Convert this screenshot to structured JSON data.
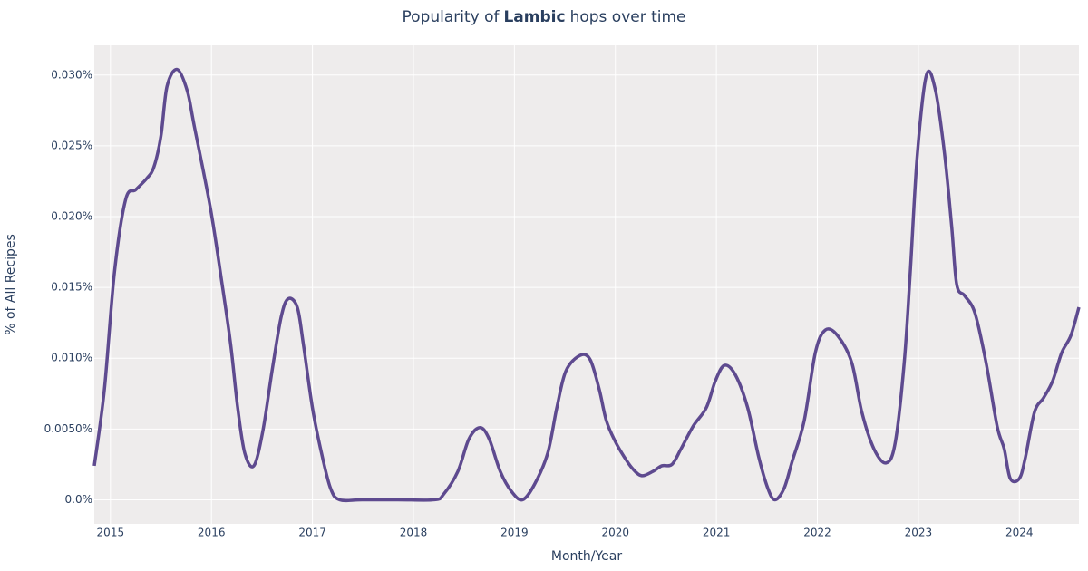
{
  "chart_data": {
    "type": "line",
    "title": {
      "prefix": "Popularity of",
      "emphasis": "Lambic",
      "suffix": "hops over time"
    },
    "x_label": "Month/Year",
    "y_label": "% of All Recipes",
    "xlim": [
      2014.84,
      2024.59
    ],
    "xticks": [
      2015,
      2016,
      2017,
      2018,
      2019,
      2020,
      2021,
      2022,
      2023,
      2024
    ],
    "ylim": [
      -0.0017,
      0.0321
    ],
    "yticks": [
      {
        "value": 0,
        "label": "0.0%"
      },
      {
        "value": 0.005,
        "label": "0.0050%"
      },
      {
        "value": 0.01,
        "label": "0.010%"
      },
      {
        "value": 0.015,
        "label": "0.015%"
      },
      {
        "value": 0.02,
        "label": "0.020%"
      },
      {
        "value": 0.025,
        "label": "0.025%"
      },
      {
        "value": 0.03,
        "label": "0.030%"
      }
    ],
    "grid": true,
    "series": [
      {
        "name": "Lambic",
        "color": "#5e4a8f",
        "x": [
          2014.84,
          2014.94,
          2015.04,
          2015.15,
          2015.25,
          2015.36,
          2015.43,
          2015.5,
          2015.56,
          2015.66,
          2015.76,
          2015.83,
          2015.99,
          2016.1,
          2016.19,
          2016.26,
          2016.33,
          2016.42,
          2016.51,
          2016.6,
          2016.69,
          2016.76,
          2016.85,
          2016.91,
          2017.0,
          2017.09,
          2017.18,
          2017.27,
          2017.49,
          2017.85,
          2018.21,
          2018.3,
          2018.44,
          2018.55,
          2018.66,
          2018.75,
          2018.86,
          2018.97,
          2019.08,
          2019.2,
          2019.33,
          2019.42,
          2019.51,
          2019.65,
          2019.75,
          2019.84,
          2019.91,
          2020.0,
          2020.09,
          2020.17,
          2020.26,
          2020.37,
          2020.46,
          2020.56,
          2020.65,
          2020.77,
          2020.9,
          2020.99,
          2021.08,
          2021.19,
          2021.31,
          2021.42,
          2021.51,
          2021.58,
          2021.67,
          2021.75,
          2021.87,
          2021.98,
          2022.08,
          2022.2,
          2022.34,
          2022.44,
          2022.56,
          2022.68,
          2022.77,
          2022.86,
          2022.92,
          2022.99,
          2023.08,
          2023.17,
          2023.26,
          2023.33,
          2023.38,
          2023.46,
          2023.56,
          2023.67,
          2023.78,
          2023.85,
          2023.91,
          2024.0,
          2024.06,
          2024.15,
          2024.24,
          2024.33,
          2024.42,
          2024.51,
          2024.59
        ],
        "values": [
          0.0024,
          0.0078,
          0.0161,
          0.0212,
          0.0219,
          0.0227,
          0.0235,
          0.0257,
          0.0292,
          0.0304,
          0.0289,
          0.0264,
          0.0206,
          0.0155,
          0.011,
          0.0065,
          0.0033,
          0.0024,
          0.0049,
          0.0091,
          0.0129,
          0.0142,
          0.0136,
          0.011,
          0.0065,
          0.0033,
          0.0008,
          0,
          0,
          0,
          0,
          0.0004,
          0.002,
          0.0043,
          0.0051,
          0.0043,
          0.002,
          0.0006,
          0,
          0.0011,
          0.0033,
          0.0065,
          0.0091,
          0.0102,
          0.0099,
          0.0078,
          0.0056,
          0.0041,
          0.003,
          0.0022,
          0.0017,
          0.002,
          0.0024,
          0.0025,
          0.0036,
          0.0052,
          0.0065,
          0.0084,
          0.0095,
          0.0088,
          0.0065,
          0.003,
          0.0008,
          0,
          0.0008,
          0.0027,
          0.0056,
          0.0104,
          0.012,
          0.0116,
          0.0097,
          0.0062,
          0.0036,
          0.0026,
          0.004,
          0.0097,
          0.0161,
          0.0244,
          0.03,
          0.0289,
          0.0244,
          0.0193,
          0.0152,
          0.0144,
          0.0132,
          0.0097,
          0.0052,
          0.0036,
          0.0015,
          0.0015,
          0.003,
          0.0062,
          0.0072,
          0.0084,
          0.0104,
          0.0116,
          0.0136
        ]
      }
    ]
  }
}
